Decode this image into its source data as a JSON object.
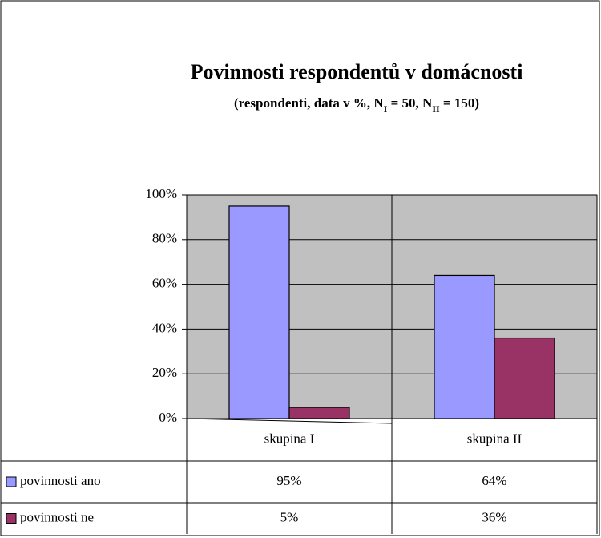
{
  "chart_data": {
    "type": "bar",
    "title": "Povinnosti respondentů v domácnosti",
    "subtitle_parts": [
      "(respondenti, data v %, N",
      "I",
      " = 50, N",
      "II",
      " = 150)"
    ],
    "categories": [
      "skupina I",
      "skupina II"
    ],
    "series": [
      {
        "name": "povinnosti ano",
        "color": "#9999ff",
        "values": [
          95,
          64
        ],
        "value_labels": [
          "95%",
          "64%"
        ]
      },
      {
        "name": "povinnosti ne",
        "color": "#993366",
        "values": [
          5,
          36
        ],
        "value_labels": [
          "5%",
          "36%"
        ]
      }
    ],
    "ylim": [
      0,
      100
    ],
    "yticks": [
      {
        "value": 0,
        "label": "0%"
      },
      {
        "value": 20,
        "label": "20%"
      },
      {
        "value": 40,
        "label": "40%"
      },
      {
        "value": 60,
        "label": "60%"
      },
      {
        "value": 80,
        "label": "80%"
      },
      {
        "value": 100,
        "label": "100%"
      }
    ],
    "grid": true,
    "plot_background": "#c0c0c0"
  }
}
